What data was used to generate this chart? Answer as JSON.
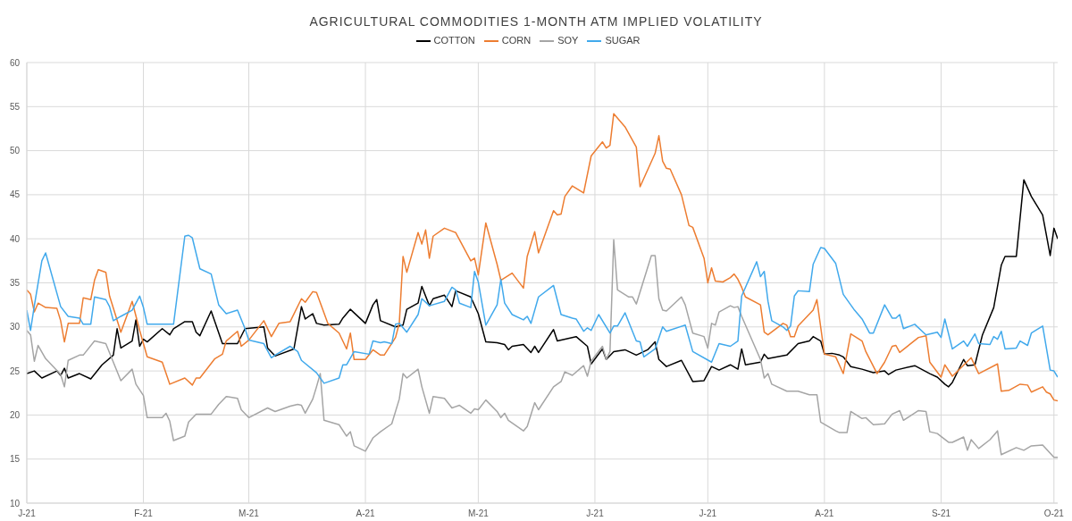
{
  "chart_data": {
    "type": "line",
    "title": "AGRICULTURAL COMMODITIES 1-MONTH ATM IMPLIED VOLATILITY",
    "legend": "top",
    "grid": true,
    "marker": "none",
    "line_style": "solid",
    "xlim": [
      "2021-01-01",
      "2021-10-02"
    ],
    "xticks": [
      {
        "value": "2021-01-01",
        "label": "J-21"
      },
      {
        "value": "2021-02-01",
        "label": "F-21"
      },
      {
        "value": "2021-03-01",
        "label": "M-21"
      },
      {
        "value": "2021-04-01",
        "label": "A-21"
      },
      {
        "value": "2021-05-01",
        "label": "M-21"
      },
      {
        "value": "2021-06-01",
        "label": "J-21"
      },
      {
        "value": "2021-07-01",
        "label": "J-21"
      },
      {
        "value": "2021-08-01",
        "label": "A-21"
      },
      {
        "value": "2021-09-01",
        "label": "S-21"
      },
      {
        "value": "2021-10-01",
        "label": "O-21"
      }
    ],
    "ylim": [
      10,
      60
    ],
    "yticks": [
      10,
      15,
      20,
      25,
      30,
      35,
      40,
      45,
      50,
      55,
      60
    ],
    "series": [
      {
        "name": "COTTON",
        "color": "#000000",
        "x": [
          "2021-01-01",
          "2021-01-03",
          "2021-01-05",
          "2021-01-09",
          "2021-01-10",
          "2021-01-11",
          "2021-01-12",
          "2021-01-15",
          "2021-01-18",
          "2021-01-21",
          "2021-01-24",
          "2021-01-25",
          "2021-01-26",
          "2021-01-29",
          "2021-01-30",
          "2021-01-31",
          "2021-02-01",
          "2021-02-02",
          "2021-02-06",
          "2021-02-08",
          "2021-02-09",
          "2021-02-12",
          "2021-02-14",
          "2021-02-15",
          "2021-02-16",
          "2021-02-19",
          "2021-02-22",
          "2021-02-26",
          "2021-02-28",
          "2021-03-05",
          "2021-03-06",
          "2021-03-08",
          "2021-03-13",
          "2021-03-15",
          "2021-03-16",
          "2021-03-18",
          "2021-03-19",
          "2021-03-21",
          "2021-03-25",
          "2021-03-26",
          "2021-03-28",
          "2021-04-01",
          "2021-04-03",
          "2021-04-04",
          "2021-04-05",
          "2021-04-09",
          "2021-04-11",
          "2021-04-12",
          "2021-04-15",
          "2021-04-16",
          "2021-04-18",
          "2021-04-19",
          "2021-04-22",
          "2021-04-24",
          "2021-04-25",
          "2021-04-29",
          "2021-05-01",
          "2021-05-03",
          "2021-05-06",
          "2021-05-08",
          "2021-05-09",
          "2021-05-10",
          "2021-05-13",
          "2021-05-15",
          "2021-05-16",
          "2021-05-17",
          "2021-05-21",
          "2021-05-22",
          "2021-05-27",
          "2021-05-30",
          "2021-05-31",
          "2021-06-03",
          "2021-06-04",
          "2021-06-06",
          "2021-06-09",
          "2021-06-12",
          "2021-06-15",
          "2021-06-17",
          "2021-06-18",
          "2021-06-20",
          "2021-06-24",
          "2021-06-27",
          "2021-06-30",
          "2021-07-02",
          "2021-07-04",
          "2021-07-07",
          "2021-07-09",
          "2021-07-10",
          "2021-07-11",
          "2021-07-15",
          "2021-07-16",
          "2021-07-17",
          "2021-07-22",
          "2021-07-25",
          "2021-07-28",
          "2021-07-29",
          "2021-07-31",
          "2021-08-01",
          "2021-08-03",
          "2021-08-05",
          "2021-08-06",
          "2021-08-08",
          "2021-08-11",
          "2021-08-14",
          "2021-08-17",
          "2021-08-18",
          "2021-08-20",
          "2021-08-25",
          "2021-08-29",
          "2021-08-31",
          "2021-09-02",
          "2021-09-03",
          "2021-09-04",
          "2021-09-07",
          "2021-09-08",
          "2021-09-10",
          "2021-09-12",
          "2021-09-15",
          "2021-09-17",
          "2021-09-18",
          "2021-09-21",
          "2021-09-23",
          "2021-09-25",
          "2021-09-28",
          "2021-09-30",
          "2021-10-01",
          "2021-10-02"
        ],
        "values": [
          24.7,
          25,
          24.2,
          25,
          24.5,
          25.3,
          24.2,
          24.7,
          24.1,
          25.7,
          26.8,
          29.8,
          27.6,
          28.4,
          30.8,
          27.8,
          28.6,
          28.3,
          29.8,
          29.1,
          29.8,
          30.6,
          30.6,
          29.4,
          29,
          31.8,
          28.1,
          28.1,
          29.8,
          30,
          27.6,
          26.7,
          27.5,
          32.3,
          30.9,
          31.5,
          30.4,
          30.2,
          30.3,
          31,
          32,
          30.4,
          32.5,
          33.1,
          30.7,
          30,
          30.2,
          32,
          32.7,
          34.6,
          32.4,
          33.2,
          33.6,
          32.3,
          34.1,
          33.4,
          31.5,
          28.3,
          28.2,
          28,
          27.4,
          27.8,
          28,
          27.1,
          27.8,
          27.1,
          29.7,
          28.4,
          28.9,
          27.8,
          25.8,
          27.5,
          26.3,
          27.2,
          27.4,
          26.8,
          27.4,
          28.3,
          26.3,
          25.5,
          26.2,
          23.8,
          23.9,
          25.5,
          25.1,
          25.7,
          25.2,
          27.5,
          25.7,
          26,
          26.9,
          26.4,
          26.8,
          28.1,
          28.4,
          28.9,
          28.4,
          26.9,
          27,
          26.8,
          26.6,
          25.5,
          25.2,
          24.8,
          25,
          24.6,
          25.1,
          25.6,
          24.7,
          24.3,
          23.5,
          23.2,
          23.7,
          26.3,
          25.6,
          25.7,
          29.1,
          32.2,
          37,
          38,
          38,
          46.7,
          44.8,
          42.7,
          38.1,
          41.2,
          40
        ]
      },
      {
        "name": "CORN",
        "color": "#ed7d31",
        "x": [
          "2021-01-01",
          "2021-01-02",
          "2021-01-03",
          "2021-01-04",
          "2021-01-06",
          "2021-01-09",
          "2021-01-10",
          "2021-01-11",
          "2021-01-12",
          "2021-01-15",
          "2021-01-16",
          "2021-01-18",
          "2021-01-19",
          "2021-01-20",
          "2021-01-22",
          "2021-01-23",
          "2021-01-26",
          "2021-01-29",
          "2021-01-31",
          "2021-02-02",
          "2021-02-06",
          "2021-02-08",
          "2021-02-12",
          "2021-02-14",
          "2021-02-15",
          "2021-02-16",
          "2021-02-20",
          "2021-02-22",
          "2021-02-23",
          "2021-02-26",
          "2021-02-27",
          "2021-03-01",
          "2021-03-05",
          "2021-03-07",
          "2021-03-09",
          "2021-03-12",
          "2021-03-15",
          "2021-03-16",
          "2021-03-18",
          "2021-03-19",
          "2021-03-22",
          "2021-03-25",
          "2021-03-27",
          "2021-03-28",
          "2021-03-29",
          "2021-04-01",
          "2021-04-03",
          "2021-04-05",
          "2021-04-06",
          "2021-04-09",
          "2021-04-10",
          "2021-04-11",
          "2021-04-12",
          "2021-04-15",
          "2021-04-16",
          "2021-04-17",
          "2021-04-18",
          "2021-04-19",
          "2021-04-22",
          "2021-04-25",
          "2021-04-29",
          "2021-04-30",
          "2021-05-01",
          "2021-05-03",
          "2021-05-06",
          "2021-05-07",
          "2021-05-10",
          "2021-05-13",
          "2021-05-14",
          "2021-05-16",
          "2021-05-17",
          "2021-05-21",
          "2021-05-22",
          "2021-05-23",
          "2021-05-24",
          "2021-05-26",
          "2021-05-29",
          "2021-05-31",
          "2021-06-03",
          "2021-06-04",
          "2021-06-05",
          "2021-06-06",
          "2021-06-09",
          "2021-06-12",
          "2021-06-13",
          "2021-06-17",
          "2021-06-18",
          "2021-06-19",
          "2021-06-20",
          "2021-06-21",
          "2021-06-24",
          "2021-06-26",
          "2021-06-27",
          "2021-06-30",
          "2021-07-01",
          "2021-07-02",
          "2021-07-03",
          "2021-07-05",
          "2021-07-07",
          "2021-07-08",
          "2021-07-09",
          "2021-07-10",
          "2021-07-11",
          "2021-07-15",
          "2021-07-16",
          "2021-07-17",
          "2021-07-21",
          "2021-07-22",
          "2021-07-23",
          "2021-07-24",
          "2021-07-25",
          "2021-07-29",
          "2021-07-30",
          "2021-08-01",
          "2021-08-04",
          "2021-08-06",
          "2021-08-08",
          "2021-08-11",
          "2021-08-12",
          "2021-08-15",
          "2021-08-17",
          "2021-08-19",
          "2021-08-20",
          "2021-08-21",
          "2021-08-26",
          "2021-08-28",
          "2021-08-29",
          "2021-09-01",
          "2021-09-02",
          "2021-09-04",
          "2021-09-09",
          "2021-09-11",
          "2021-09-16",
          "2021-09-17",
          "2021-09-19",
          "2021-09-22",
          "2021-09-24",
          "2021-09-25",
          "2021-09-28",
          "2021-09-29",
          "2021-09-30",
          "2021-10-01",
          "2021-10-02"
        ],
        "values": [
          34.2,
          33.7,
          31.7,
          32.7,
          32.2,
          32.1,
          30.7,
          28.3,
          30.4,
          30.4,
          33.3,
          33.1,
          35.3,
          36.5,
          36.2,
          33.5,
          29.4,
          32.9,
          29.6,
          26.6,
          26,
          23.5,
          24.2,
          23.4,
          24.2,
          24.2,
          26.4,
          26.9,
          28.4,
          29.5,
          27.8,
          28.5,
          30.7,
          28.9,
          30.4,
          30.6,
          33.2,
          32.8,
          34,
          33.9,
          30.4,
          29.3,
          27.5,
          29.3,
          26.3,
          26.3,
          27.4,
          26.8,
          26.8,
          28.8,
          30.4,
          38,
          36.2,
          40.7,
          39.4,
          41,
          37.8,
          40.3,
          41.2,
          40.7,
          37.5,
          37.8,
          35.9,
          41.8,
          37.1,
          35.3,
          36.1,
          34.4,
          38,
          40.8,
          38.4,
          43.2,
          42.7,
          42.8,
          44.8,
          46,
          45.2,
          49.4,
          51,
          50.3,
          50.6,
          54.2,
          52.7,
          50.4,
          45.9,
          49.7,
          51.7,
          48.8,
          48,
          47.9,
          45,
          41.5,
          41.3,
          37.8,
          35,
          36.7,
          35.2,
          35.1,
          35.6,
          36,
          35.4,
          34.5,
          33.4,
          32.5,
          29.4,
          29.1,
          30.4,
          30.2,
          28.9,
          28.9,
          30.1,
          31.9,
          33.1,
          26.9,
          26.6,
          24.7,
          29.2,
          28.4,
          27.2,
          24.7,
          26,
          27.8,
          27.9,
          27.1,
          28.8,
          29,
          26,
          24.3,
          25.7,
          24.4,
          26.5,
          24.7,
          25.8,
          22.7,
          22.8,
          23.5,
          23.4,
          22.6,
          23.2,
          22.6,
          22.4,
          21.7,
          21.6
        ]
      },
      {
        "name": "SOY",
        "color": "#a5a5a5",
        "x": [
          "2021-01-01",
          "2021-01-02",
          "2021-01-03",
          "2021-01-04",
          "2021-01-06",
          "2021-01-10",
          "2021-01-11",
          "2021-01-12",
          "2021-01-15",
          "2021-01-16",
          "2021-01-19",
          "2021-01-22",
          "2021-01-24",
          "2021-01-26",
          "2021-01-29",
          "2021-01-30",
          "2021-02-01",
          "2021-02-02",
          "2021-02-06",
          "2021-02-07",
          "2021-02-08",
          "2021-02-09",
          "2021-02-12",
          "2021-02-13",
          "2021-02-15",
          "2021-02-19",
          "2021-02-21",
          "2021-02-23",
          "2021-02-26",
          "2021-02-27",
          "2021-03-01",
          "2021-03-06",
          "2021-03-08",
          "2021-03-12",
          "2021-03-14",
          "2021-03-15",
          "2021-03-16",
          "2021-03-18",
          "2021-03-19",
          "2021-03-20",
          "2021-03-21",
          "2021-03-25",
          "2021-03-27",
          "2021-03-28",
          "2021-03-29",
          "2021-04-01",
          "2021-04-03",
          "2021-04-05",
          "2021-04-08",
          "2021-04-10",
          "2021-04-11",
          "2021-04-12",
          "2021-04-15",
          "2021-04-16",
          "2021-04-18",
          "2021-04-19",
          "2021-04-22",
          "2021-04-24",
          "2021-04-26",
          "2021-04-29",
          "2021-04-30",
          "2021-05-01",
          "2021-05-03",
          "2021-05-06",
          "2021-05-07",
          "2021-05-08",
          "2021-05-09",
          "2021-05-13",
          "2021-05-14",
          "2021-05-16",
          "2021-05-17",
          "2021-05-21",
          "2021-05-23",
          "2021-05-24",
          "2021-05-26",
          "2021-05-29",
          "2021-05-30",
          "2021-05-31",
          "2021-06-03",
          "2021-06-04",
          "2021-06-05",
          "2021-06-06",
          "2021-06-07",
          "2021-06-10",
          "2021-06-11",
          "2021-06-12",
          "2021-06-16",
          "2021-06-17",
          "2021-06-18",
          "2021-06-19",
          "2021-06-20",
          "2021-06-24",
          "2021-06-25",
          "2021-06-27",
          "2021-06-30",
          "2021-07-01",
          "2021-07-02",
          "2021-07-03",
          "2021-07-04",
          "2021-07-07",
          "2021-07-08",
          "2021-07-09",
          "2021-07-10",
          "2021-07-15",
          "2021-07-16",
          "2021-07-17",
          "2021-07-18",
          "2021-07-22",
          "2021-07-25",
          "2021-07-28",
          "2021-07-30",
          "2021-07-31",
          "2021-08-04",
          "2021-08-05",
          "2021-08-07",
          "2021-08-08",
          "2021-08-11",
          "2021-08-12",
          "2021-08-14",
          "2021-08-17",
          "2021-08-19",
          "2021-08-21",
          "2021-08-22",
          "2021-08-26",
          "2021-08-28",
          "2021-08-29",
          "2021-08-31",
          "2021-09-03",
          "2021-09-04",
          "2021-09-07",
          "2021-09-08",
          "2021-09-09",
          "2021-09-11",
          "2021-09-14",
          "2021-09-16",
          "2021-09-17",
          "2021-09-21",
          "2021-09-23",
          "2021-09-25",
          "2021-09-28",
          "2021-10-01",
          "2021-10-02"
        ],
        "values": [
          29.6,
          29.1,
          26.1,
          27.9,
          26.4,
          24.6,
          23.2,
          26.2,
          26.8,
          26.8,
          28.4,
          28.1,
          26,
          23.9,
          25.2,
          23.5,
          22.2,
          19.7,
          19.7,
          20.2,
          19.3,
          17.1,
          17.6,
          19.2,
          20.1,
          20.1,
          21.2,
          22.1,
          21.9,
          20.6,
          19.7,
          20.8,
          20.4,
          21,
          21.2,
          21.1,
          20.2,
          21.8,
          23.2,
          24.7,
          19.4,
          18.9,
          17.6,
          18.1,
          16.5,
          15.9,
          17.4,
          18.1,
          19,
          21.8,
          24.7,
          24.2,
          25.2,
          23.2,
          20.2,
          22.1,
          21.9,
          20.8,
          21.1,
          20.2,
          20.7,
          20.6,
          21.7,
          20.4,
          19.7,
          20.2,
          19.4,
          18.2,
          18.7,
          21.4,
          20.6,
          23.2,
          23.8,
          24.9,
          24.5,
          25.6,
          24.4,
          26.1,
          27.8,
          26.3,
          27.2,
          39.9,
          34.2,
          33.4,
          33.4,
          32.6,
          38.1,
          38.1,
          33.2,
          31.9,
          31.8,
          33.4,
          32.5,
          29.3,
          28.9,
          27.6,
          30.4,
          30.2,
          31.7,
          32.4,
          32.2,
          32.3,
          31.2,
          26.3,
          24.2,
          24.7,
          23.5,
          22.7,
          22.7,
          22.3,
          22.3,
          19.2,
          18.2,
          18,
          18,
          20.4,
          19.6,
          19.7,
          18.9,
          19,
          20.1,
          20.5,
          19.4,
          20.5,
          20.4,
          18.1,
          17.9,
          16.9,
          16.9,
          17.5,
          16,
          17.2,
          16.2,
          17.2,
          18.2,
          15.5,
          16.3,
          16,
          16.5,
          16.6,
          15.2,
          15.2
        ]
      },
      {
        "name": "SUGAR",
        "color": "#41a9ec",
        "x": [
          "2021-01-01",
          "2021-01-02",
          "2021-01-03",
          "2021-01-05",
          "2021-01-06",
          "2021-01-10",
          "2021-01-12",
          "2021-01-15",
          "2021-01-16",
          "2021-01-18",
          "2021-01-19",
          "2021-01-22",
          "2021-01-23",
          "2021-01-24",
          "2021-01-26",
          "2021-01-29",
          "2021-01-31",
          "2021-02-01",
          "2021-02-02",
          "2021-02-09",
          "2021-02-12",
          "2021-02-13",
          "2021-02-14",
          "2021-02-16",
          "2021-02-19",
          "2021-02-21",
          "2021-02-23",
          "2021-02-26",
          "2021-02-28",
          "2021-03-01",
          "2021-03-05",
          "2021-03-07",
          "2021-03-08",
          "2021-03-12",
          "2021-03-14",
          "2021-03-15",
          "2021-03-19",
          "2021-03-21",
          "2021-03-25",
          "2021-03-26",
          "2021-03-27",
          "2021-03-29",
          "2021-04-02",
          "2021-04-03",
          "2021-04-05",
          "2021-04-06",
          "2021-04-08",
          "2021-04-09",
          "2021-04-10",
          "2021-04-12",
          "2021-04-15",
          "2021-04-16",
          "2021-04-18",
          "2021-04-22",
          "2021-04-24",
          "2021-04-25",
          "2021-04-26",
          "2021-04-29",
          "2021-04-30",
          "2021-05-01",
          "2021-05-03",
          "2021-05-06",
          "2021-05-07",
          "2021-05-08",
          "2021-05-10",
          "2021-05-13",
          "2021-05-14",
          "2021-05-15",
          "2021-05-17",
          "2021-05-21",
          "2021-05-23",
          "2021-05-26",
          "2021-05-27",
          "2021-05-29",
          "2021-05-30",
          "2021-05-31",
          "2021-06-02",
          "2021-06-05",
          "2021-06-06",
          "2021-06-07",
          "2021-06-09",
          "2021-06-12",
          "2021-06-13",
          "2021-06-14",
          "2021-06-17",
          "2021-06-19",
          "2021-06-20",
          "2021-06-25",
          "2021-06-27",
          "2021-07-02",
          "2021-07-04",
          "2021-07-07",
          "2021-07-09",
          "2021-07-10",
          "2021-07-14",
          "2021-07-15",
          "2021-07-16",
          "2021-07-17",
          "2021-07-18",
          "2021-07-21",
          "2021-07-22",
          "2021-07-23",
          "2021-07-24",
          "2021-07-25",
          "2021-07-28",
          "2021-07-29",
          "2021-07-31",
          "2021-08-01",
          "2021-08-04",
          "2021-08-06",
          "2021-08-09",
          "2021-08-11",
          "2021-08-13",
          "2021-08-14",
          "2021-08-17",
          "2021-08-19",
          "2021-08-20",
          "2021-08-21",
          "2021-08-22",
          "2021-08-25",
          "2021-08-28",
          "2021-08-31",
          "2021-09-01",
          "2021-09-02",
          "2021-09-04",
          "2021-09-07",
          "2021-09-08",
          "2021-09-10",
          "2021-09-11",
          "2021-09-14",
          "2021-09-15",
          "2021-09-16",
          "2021-09-17",
          "2021-09-18",
          "2021-09-21",
          "2021-09-22",
          "2021-09-24",
          "2021-09-25",
          "2021-09-28",
          "2021-09-30",
          "2021-10-01",
          "2021-10-02"
        ],
        "values": [
          31.9,
          29.6,
          32.4,
          37.5,
          38.4,
          32.3,
          31.2,
          31,
          30.3,
          30.3,
          33.4,
          33.1,
          32.3,
          30.7,
          31.2,
          31.9,
          33.5,
          32.2,
          30.3,
          30.3,
          40.3,
          40.4,
          40.1,
          36.6,
          36,
          32.5,
          31.5,
          31.9,
          29.8,
          28.5,
          28.1,
          26.5,
          26.8,
          27.8,
          27.2,
          26.2,
          24.8,
          23.6,
          24.2,
          25.7,
          25.7,
          27.2,
          26.9,
          28.4,
          28.2,
          28.3,
          28.1,
          30.3,
          30.4,
          29.4,
          31.4,
          33.2,
          32.4,
          32.9,
          34.5,
          34.2,
          32.7,
          32.2,
          36.3,
          35.1,
          30.2,
          32.5,
          35.4,
          32.7,
          31.4,
          30.8,
          31.2,
          30.4,
          33.4,
          34.7,
          31.4,
          31,
          30.9,
          29.5,
          29.9,
          29.6,
          31.4,
          29.3,
          30.1,
          30.1,
          31.6,
          28.4,
          28.3,
          26.6,
          27.5,
          30,
          29.5,
          30.2,
          27.2,
          26,
          28.1,
          27.8,
          28.4,
          33.5,
          37.4,
          35.7,
          36.3,
          32.9,
          30.7,
          30,
          29.6,
          30.1,
          33.5,
          34.1,
          34,
          37.1,
          39,
          38.9,
          37.2,
          33.7,
          31.9,
          30.9,
          29.3,
          29.3,
          32.5,
          31,
          31,
          31.4,
          29.8,
          30.3,
          29.1,
          29.4,
          28.8,
          30.9,
          27.5,
          28.4,
          27.8,
          29.2,
          28.1,
          28,
          28.9,
          28.6,
          29.5,
          27.5,
          27.6,
          28.4,
          27.9,
          29.3,
          30.1,
          25.1,
          25,
          24.3
        ]
      }
    ]
  }
}
